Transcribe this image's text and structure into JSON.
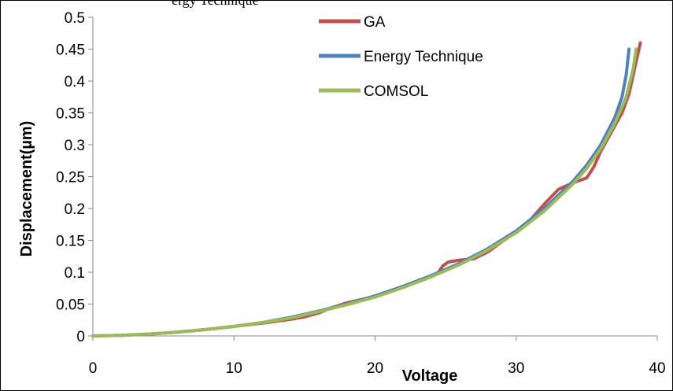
{
  "top_text_fragment": "ergy Technique",
  "chart_data": {
    "type": "line",
    "xlabel": "Voltage",
    "ylabel": "Displacement(µm)",
    "xlim": [
      0,
      40
    ],
    "ylim": [
      0,
      0.5
    ],
    "x_ticks": [
      "0",
      "10",
      "20",
      "30",
      "40"
    ],
    "y_ticks": [
      "0",
      "0.05",
      "0.1",
      "0.15",
      "0.2",
      "0.25",
      "0.3",
      "0.35",
      "0.4",
      "0.45",
      "0.5"
    ],
    "grid": false,
    "legend_position": "top-center",
    "series": [
      {
        "name": "GA",
        "color": "#c0504d",
        "points": [
          [
            0,
            0
          ],
          [
            2,
            0.001
          ],
          [
            4,
            0.003
          ],
          [
            6,
            0.006
          ],
          [
            8,
            0.01
          ],
          [
            10,
            0.015
          ],
          [
            12,
            0.02
          ],
          [
            14,
            0.026
          ],
          [
            15,
            0.03
          ],
          [
            16,
            0.036
          ],
          [
            17,
            0.045
          ],
          [
            18,
            0.052
          ],
          [
            20,
            0.062
          ],
          [
            22,
            0.077
          ],
          [
            24,
            0.094
          ],
          [
            24.5,
            0.1
          ],
          [
            24.8,
            0.11
          ],
          [
            25.2,
            0.116
          ],
          [
            26,
            0.119
          ],
          [
            27,
            0.121
          ],
          [
            28,
            0.132
          ],
          [
            29,
            0.148
          ],
          [
            30,
            0.163
          ],
          [
            31,
            0.182
          ],
          [
            32,
            0.207
          ],
          [
            33,
            0.23
          ],
          [
            34,
            0.24
          ],
          [
            35,
            0.248
          ],
          [
            35.5,
            0.265
          ],
          [
            36,
            0.29
          ],
          [
            36.5,
            0.31
          ],
          [
            37,
            0.33
          ],
          [
            37.5,
            0.35
          ],
          [
            38,
            0.38
          ],
          [
            38.5,
            0.43
          ],
          [
            38.8,
            0.46
          ]
        ]
      },
      {
        "name": "Energy Technique",
        "color": "#4f81bd",
        "points": [
          [
            0,
            0
          ],
          [
            2,
            0.001
          ],
          [
            4,
            0.003
          ],
          [
            6,
            0.006
          ],
          [
            8,
            0.01
          ],
          [
            10,
            0.015
          ],
          [
            12,
            0.021
          ],
          [
            14,
            0.029
          ],
          [
            16,
            0.039
          ],
          [
            18,
            0.05
          ],
          [
            20,
            0.063
          ],
          [
            22,
            0.078
          ],
          [
            24,
            0.095
          ],
          [
            26,
            0.114
          ],
          [
            28,
            0.137
          ],
          [
            30,
            0.165
          ],
          [
            32,
            0.2
          ],
          [
            34,
            0.242
          ],
          [
            35,
            0.268
          ],
          [
            36,
            0.3
          ],
          [
            37,
            0.343
          ],
          [
            37.5,
            0.375
          ],
          [
            37.8,
            0.41
          ],
          [
            38,
            0.45
          ]
        ]
      },
      {
        "name": "COMSOL",
        "color": "#9bbb59",
        "points": [
          [
            0,
            0
          ],
          [
            2,
            0.001
          ],
          [
            4,
            0.003
          ],
          [
            6,
            0.006
          ],
          [
            8,
            0.01
          ],
          [
            10,
            0.015
          ],
          [
            12,
            0.021
          ],
          [
            14,
            0.028
          ],
          [
            16,
            0.038
          ],
          [
            18,
            0.049
          ],
          [
            20,
            0.061
          ],
          [
            22,
            0.076
          ],
          [
            24,
            0.093
          ],
          [
            26,
            0.112
          ],
          [
            28,
            0.135
          ],
          [
            30,
            0.162
          ],
          [
            32,
            0.196
          ],
          [
            34,
            0.238
          ],
          [
            35,
            0.263
          ],
          [
            36,
            0.294
          ],
          [
            37,
            0.334
          ],
          [
            37.8,
            0.375
          ],
          [
            38.3,
            0.42
          ],
          [
            38.5,
            0.45
          ]
        ]
      }
    ]
  }
}
